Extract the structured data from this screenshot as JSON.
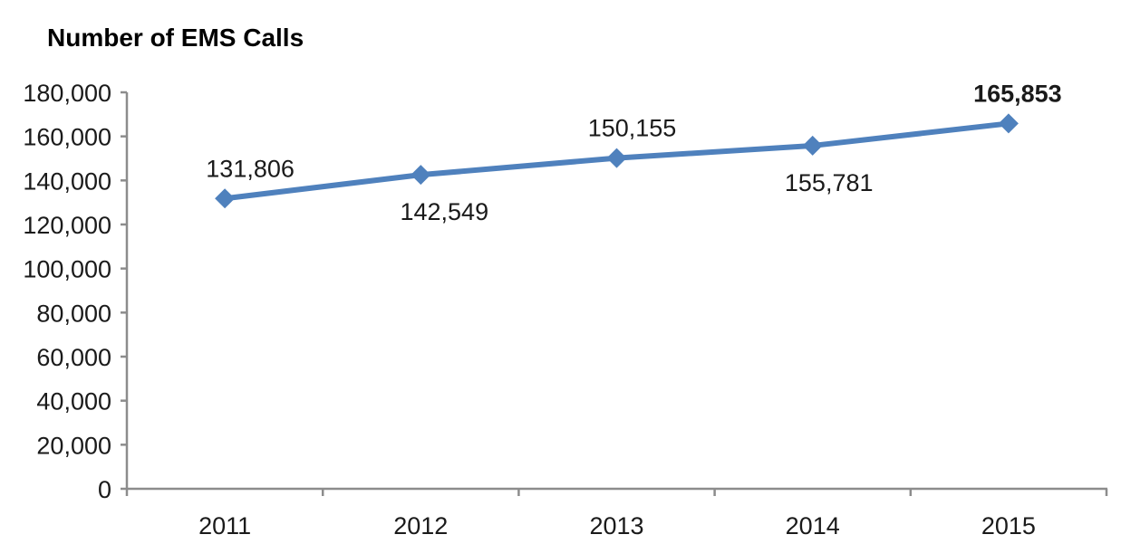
{
  "page": {
    "background": "#ffffff"
  },
  "chart_data": {
    "type": "line",
    "title": "Number of EMS Calls",
    "categories": [
      "2011",
      "2012",
      "2013",
      "2014",
      "2015"
    ],
    "series": [
      {
        "name": "Number of EMS Calls",
        "values": [
          131806,
          142549,
          150155,
          155781,
          165853
        ],
        "data_labels": [
          "131,806",
          "142,549",
          "150,155",
          "155,781",
          "165,853"
        ],
        "label_side": [
          "above",
          "below",
          "above",
          "below",
          "above"
        ],
        "label_bold": [
          false,
          false,
          false,
          false,
          true
        ],
        "color": "#4F81BD",
        "marker": "diamond"
      }
    ],
    "xlabel": "",
    "ylabel": "",
    "ylim": [
      0,
      180000
    ],
    "ytick_step": 20000,
    "ytick_labels": [
      "0",
      "20,000",
      "40,000",
      "60,000",
      "80,000",
      "100,000",
      "120,000",
      "140,000",
      "160,000",
      "180,000"
    ],
    "grid": false,
    "legend": "none",
    "axis_color": "#8C8C8C",
    "text_color": "#1A1A1A"
  }
}
